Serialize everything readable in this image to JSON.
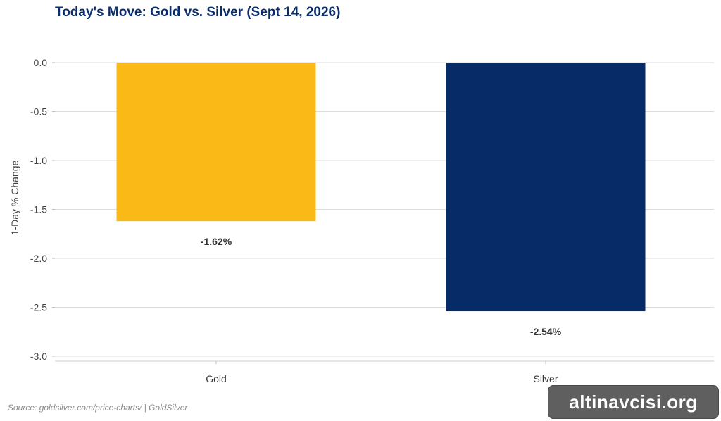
{
  "chart_data": {
    "type": "bar",
    "title": "Today's Move: Gold vs. Silver (Sept 14, 2026)",
    "ylabel": "1-Day % Change",
    "xlabel": "",
    "categories": [
      "Gold",
      "Silver"
    ],
    "values": [
      -1.62,
      -2.54
    ],
    "data_labels": [
      "-1.62%",
      "-2.54%"
    ],
    "colors": [
      "#fbb917",
      "#062b67"
    ],
    "ylim": [
      -3.0,
      0.0
    ],
    "yticks": [
      0.0,
      -0.5,
      -1.0,
      -1.5,
      -2.0,
      -2.5,
      -3.0
    ],
    "ytick_labels": [
      "0.0",
      "-0.5",
      "-1.0",
      "-1.5",
      "-2.0",
      "-2.5",
      "-3.0"
    ],
    "grid": "horizontal",
    "legend": "none"
  },
  "footer": {
    "source": "Source: goldsilver.com/price-charts/ | GoldSilver"
  },
  "watermark": {
    "text": "altinavcisi.org"
  }
}
